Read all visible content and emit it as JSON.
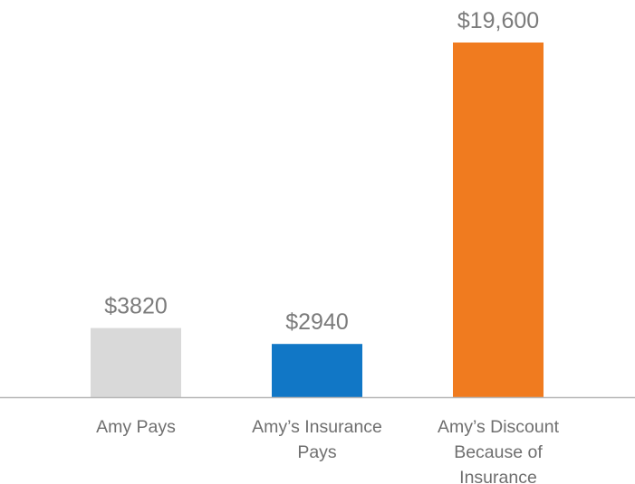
{
  "chart_data": {
    "type": "bar",
    "title": "",
    "xlabel": "",
    "ylabel": "",
    "ylim": [
      0,
      19600
    ],
    "grid": false,
    "categories": [
      [
        "Amy Pays"
      ],
      [
        "Amy’s Insurance",
        "Pays"
      ],
      [
        "Amy’s Discount",
        "Because of",
        "Insurance"
      ]
    ],
    "values": [
      3820,
      2940,
      19600
    ],
    "value_labels": [
      "$3820",
      "$2940",
      "$19,600"
    ],
    "colors": [
      "#d9d9d9",
      "#1177c6",
      "#f07b1f"
    ],
    "axis_color": "#b7b7b7"
  }
}
